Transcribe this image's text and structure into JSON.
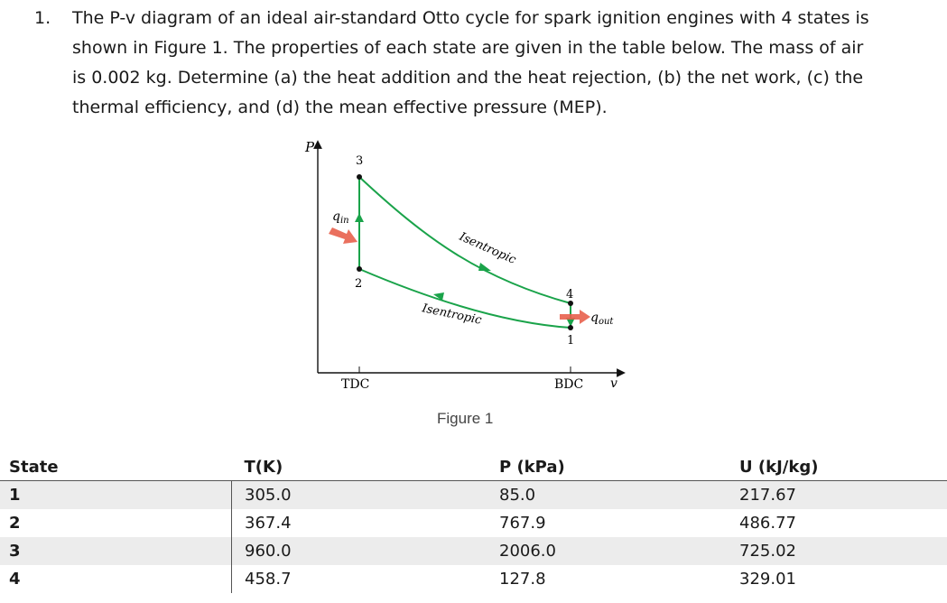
{
  "problem": {
    "number": "1.",
    "lines": [
      "The P-v diagram of an ideal air-standard Otto cycle for spark ignition engines with 4 states is",
      "shown in Figure 1.  The properties of each state are given in the table below. The mass of air",
      "is 0.002 kg.  Determine (a) the heat addition and the heat rejection, (b) the net work, (c) the",
      "thermal efficiency, and (d) the mean effective pressure (MEP)."
    ]
  },
  "figure": {
    "axis_p": "P",
    "axis_v": "v",
    "state_1": "1",
    "state_2": "2",
    "state_3": "3",
    "state_4": "4",
    "q_in": "q",
    "q_in_sub": "in",
    "q_out": "q",
    "q_out_sub": "out",
    "isentropic_upper": "Isentropic",
    "isentropic_lower": "Isentropic",
    "tdc": "TDC",
    "bdc": "BDC",
    "caption": "Figure 1",
    "colors": {
      "cycle_line": "#1aa34a",
      "heat_arrow": "#e8604c",
      "axes": "#111111"
    }
  },
  "table": {
    "headers": [
      "State",
      "T(K)",
      "P (kPa)",
      "U (kJ/kg)"
    ],
    "rows": [
      [
        "1",
        "305.0",
        "85.0",
        "217.67"
      ],
      [
        "2",
        "367.4",
        "767.9",
        "486.77"
      ],
      [
        "3",
        "960.0",
        "2006.0",
        "725.02"
      ],
      [
        "4",
        "458.7",
        "127.8",
        "329.01"
      ]
    ]
  }
}
